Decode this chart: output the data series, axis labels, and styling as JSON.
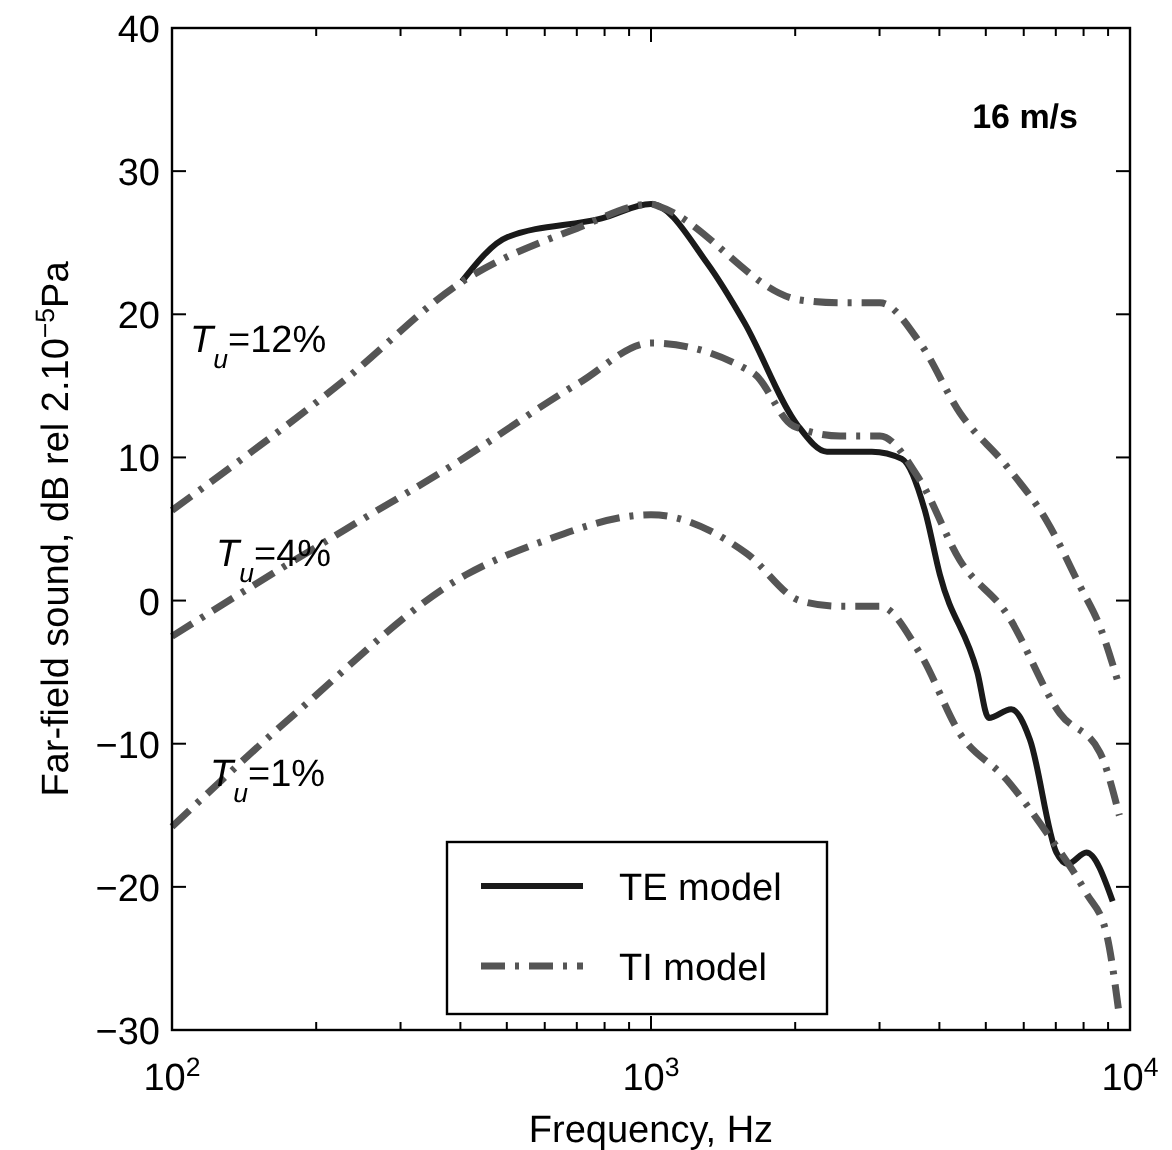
{
  "chart_data": {
    "type": "line",
    "xlabel": "Frequency, Hz",
    "ylabel": "Far-field sound, dB rel 2.10$^{−5}$Pa",
    "log": "x",
    "xlim": [
      100,
      10000
    ],
    "ylim": [
      -30,
      40
    ],
    "xticks": [
      {
        "value": 100,
        "label": "10$^{2}$"
      },
      {
        "value": 200,
        "label": null
      },
      {
        "value": 300,
        "label": null
      },
      {
        "value": 400,
        "label": null
      },
      {
        "value": 500,
        "label": null
      },
      {
        "value": 600,
        "label": null
      },
      {
        "value": 700,
        "label": null
      },
      {
        "value": 800,
        "label": null
      },
      {
        "value": 900,
        "label": null
      },
      {
        "value": 1000,
        "label": "10$^{3}$"
      },
      {
        "value": 2000,
        "label": null
      },
      {
        "value": 3000,
        "label": null
      },
      {
        "value": 4000,
        "label": null
      },
      {
        "value": 5000,
        "label": null
      },
      {
        "value": 6000,
        "label": null
      },
      {
        "value": 7000,
        "label": null
      },
      {
        "value": 8000,
        "label": null
      },
      {
        "value": 9000,
        "label": null
      },
      {
        "value": 10000,
        "label": "10$^{4}$"
      }
    ],
    "yticks": [
      {
        "value": -30,
        "label": "−30"
      },
      {
        "value": -20,
        "label": "−20"
      },
      {
        "value": -10,
        "label": "−10"
      },
      0,
      10,
      20,
      30,
      40
    ],
    "grid": false,
    "legend": "bottom",
    "marker": "none",
    "annotations": [
      "16 m/s",
      "T$_{u}$=12%",
      "T$_{u}$=4%",
      "T$_{u}$=1%"
    ],
    "series": [
      {
        "name": "TE model",
        "color": "#1a1a1a",
        "line_style": "solid",
        "x": [
          403,
          502,
          789,
          1000,
          1308,
          1568,
          2018,
          2330,
          2891,
          3340,
          3730,
          4010,
          4800,
          5070,
          5650,
          6180,
          7020,
          7410,
          8110,
          9200
        ],
        "values": [
          22.3,
          25.4,
          26.7,
          27.7,
          23.6,
          19.4,
          12.3,
          10.4,
          10.4,
          9.9,
          6.3,
          1.8,
          -5,
          -8.2,
          -7.6,
          -9.7,
          -17.6,
          -18.4,
          -17.6,
          -21
        ]
      },
      {
        "name": "TI model",
        "color": "#555555",
        "line_style": "dashdot",
        "x": [
          100,
          231,
          400,
          700,
          1000,
          1045,
          2046,
          2483,
          3006,
          3645,
          4417,
          5524,
          6693,
          7866,
          8650,
          9500
        ],
        "values": [
          6.3,
          15.5,
          22.2,
          26,
          27.7,
          27.5,
          21,
          20.8,
          20.8,
          18,
          13.1,
          9.4,
          5.6,
          1,
          -1.8,
          -6
        ]
      },
      {
        "color": "#555555",
        "line_style": "dashdot",
        "x": [
          100,
          139,
          231,
          383,
          707,
          1000,
          1633,
          1982,
          2483,
          3006,
          3645,
          4417,
          5524,
          7145,
          8650,
          9500
        ],
        "values": [
          -2.5,
          0.5,
          5,
          9.4,
          15.2,
          18,
          15.9,
          12.2,
          11.5,
          11.5,
          8.4,
          2.8,
          -0.9,
          -7.9,
          -10.6,
          -15
        ]
      },
      {
        "color": "#555555",
        "line_style": "dashdot",
        "x": [
          100,
          185,
          411,
          590,
          1000,
          1583,
          2046,
          2483,
          3006,
          3645,
          4417,
          5524,
          6693,
          8090,
          8920,
          9500
        ],
        "values": [
          -15.8,
          -7.6,
          1.8,
          4.1,
          6,
          3.3,
          0,
          -0.4,
          -0.4,
          -3.7,
          -9.3,
          -12.5,
          -16.2,
          -20.4,
          -23.2,
          -29
        ]
      }
    ]
  }
}
